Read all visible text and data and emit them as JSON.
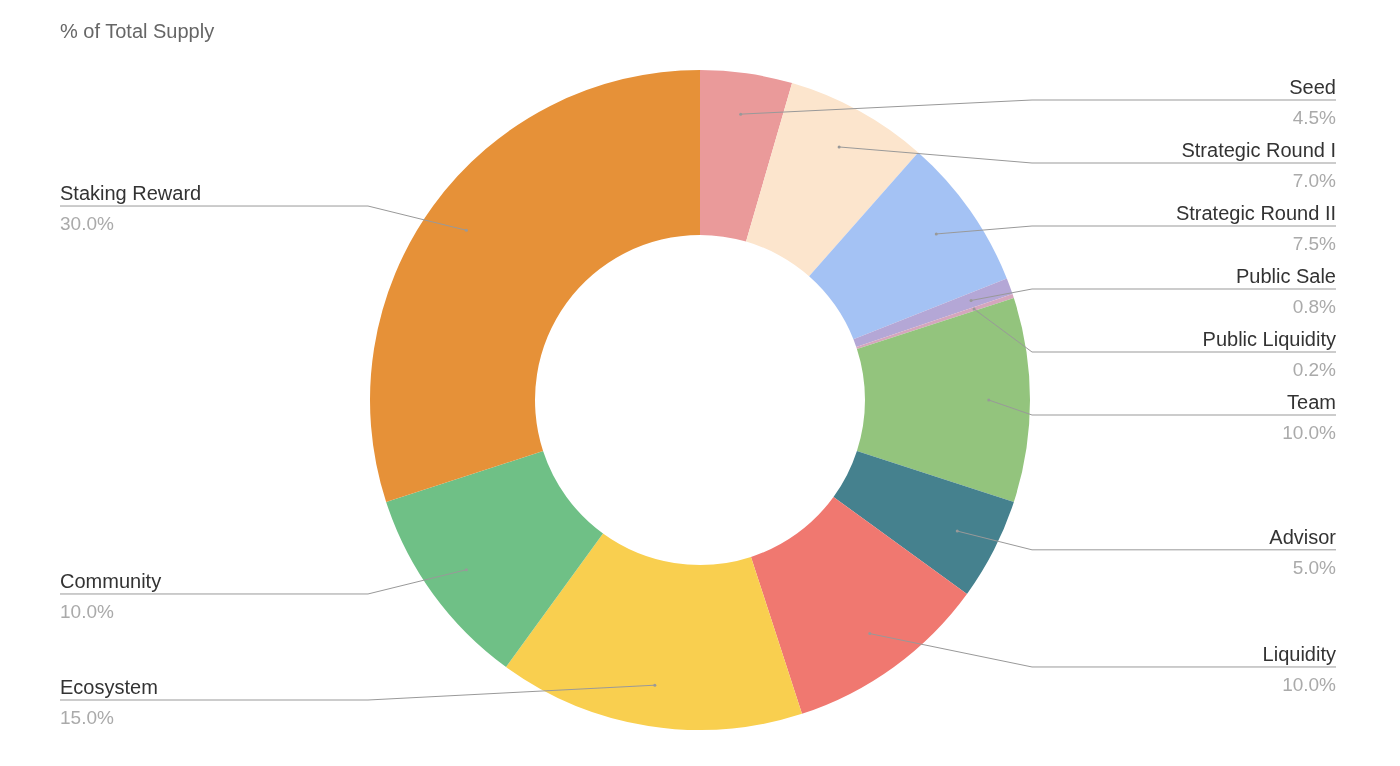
{
  "chart_data": {
    "type": "donut",
    "title": "% of Total Supply",
    "categories": [
      "Seed",
      "Strategic Round I",
      "Strategic Round II",
      "Public Sale",
      "Public Liquidity",
      "Team",
      "Advisor",
      "Liquidity",
      "Ecosystem",
      "Community",
      "Staking Reward"
    ],
    "values": [
      4.5,
      7.0,
      7.5,
      0.8,
      0.2,
      10.0,
      5.0,
      10.0,
      15.0,
      10.0,
      30.0
    ],
    "value_labels": [
      "4.5%",
      "7.0%",
      "7.5%",
      "0.8%",
      "0.2%",
      "10.0%",
      "5.0%",
      "10.0%",
      "15.0%",
      "10.0%",
      "30.0%"
    ],
    "colors": [
      "#ea9a9a",
      "#fce5cd",
      "#a4c2f4",
      "#b4a7d6",
      "#d5a6bd",
      "#93c47d",
      "#45818e",
      "#f07870",
      "#f9cf4f",
      "#6fc086",
      "#e69138"
    ],
    "legend": false
  }
}
